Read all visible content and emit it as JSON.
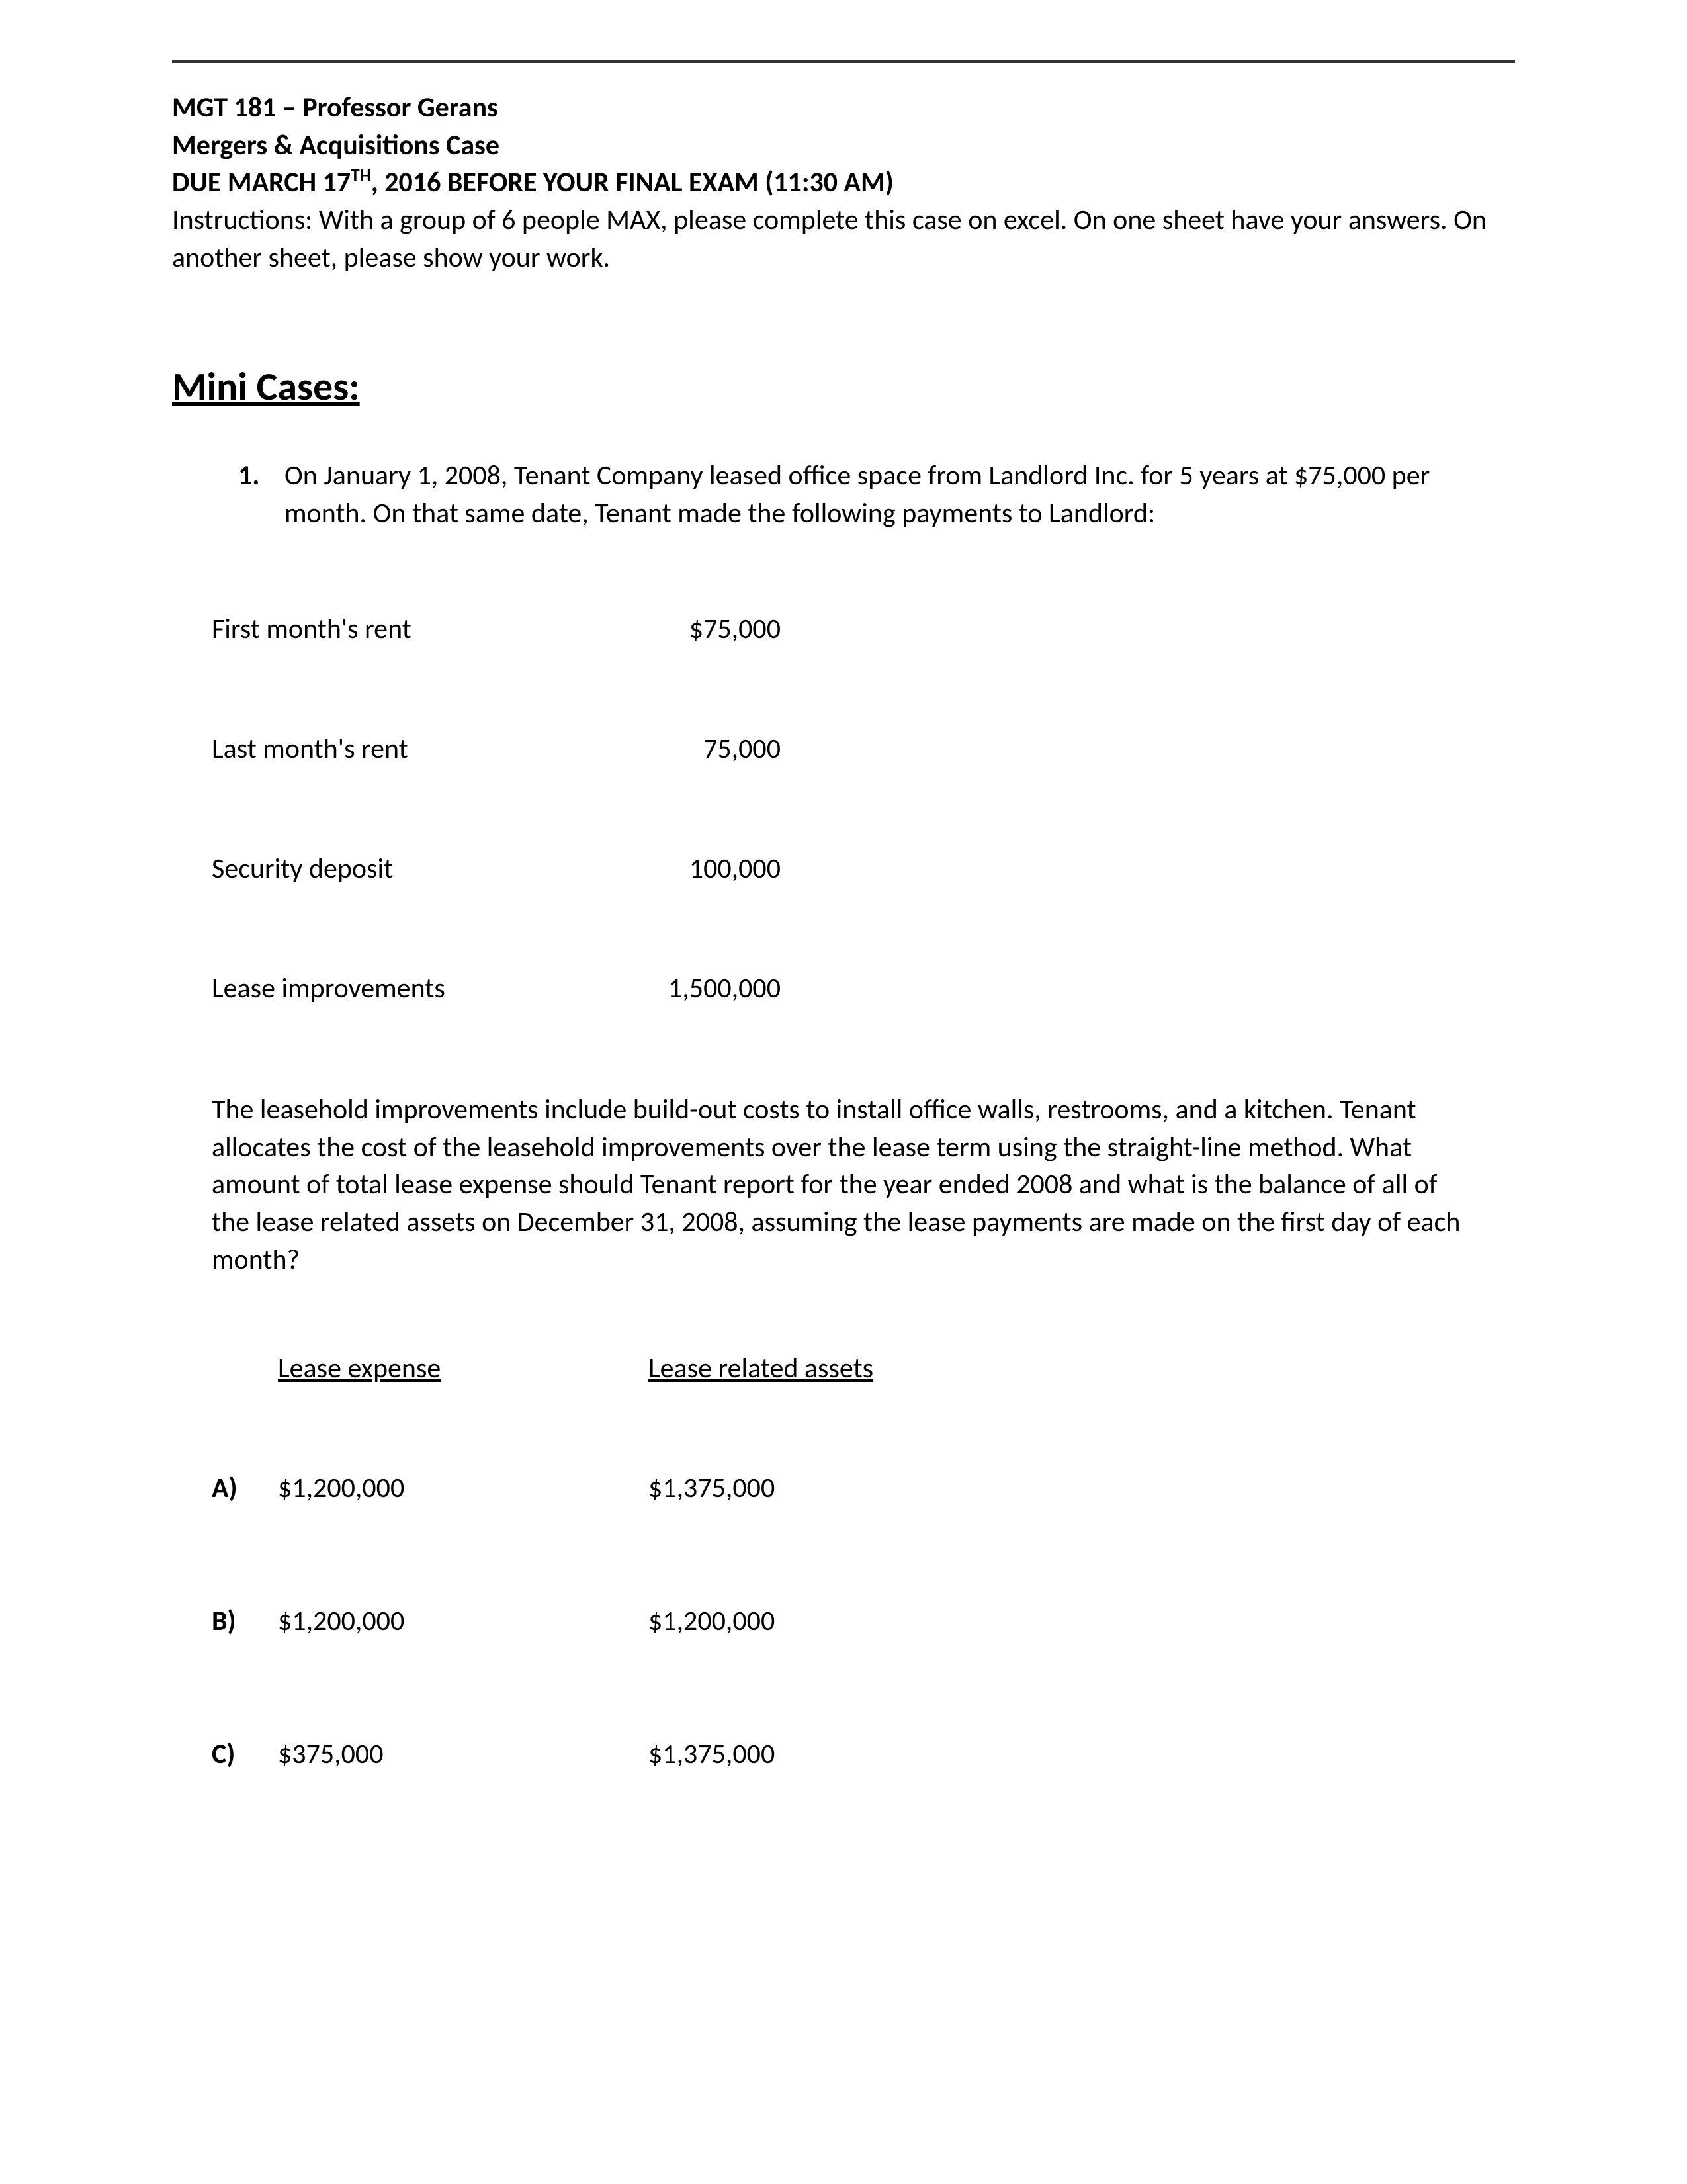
{
  "header": {
    "course_line": "MGT 181 – Professor Gerans",
    "case_line": "Mergers & Acquisitions Case",
    "due_prefix": "DUE MARCH 17",
    "due_sup": "TH",
    "due_suffix": ", 2016 BEFORE YOUR FINAL EXAM (11:30 AM)",
    "instructions": "Instructions: With a group of 6 people MAX, please complete this case on excel. On one sheet have your answers. On another sheet, please show your work."
  },
  "section_title": "Mini Cases: ",
  "question": {
    "number": "1.",
    "text": "On January 1, 2008, Tenant Company leased office space from Landlord Inc. for 5 years at $75,000 per month. On that same date, Tenant made the following payments to Landlord:"
  },
  "payments": [
    {
      "label": "First month's rent",
      "value": "$75,000"
    },
    {
      "label": "Last month's rent",
      "value": "75,000"
    },
    {
      "label": "Security deposit",
      "value": "100,000"
    },
    {
      "label": "Lease improvements",
      "value": "1,500,000"
    }
  ],
  "paragraph": "The leasehold improvements include build-out costs to install office walls, restrooms, and a kitchen. Tenant allocates the cost of the leasehold improvements over the lease term using the straight-line method. What amount of total lease expense should Tenant report for the year ended 2008 and what is the balance of all of the lease related assets on December 31, 2008, assuming the lease payments are made on the first day of each month?",
  "options_header": {
    "col1": "Lease expense",
    "col2": "Lease related assets"
  },
  "options": [
    {
      "letter": "A)",
      "col1": "$1,200,000",
      "col2": "$1,375,000"
    },
    {
      "letter": "B)",
      "col1": "$1,200,000",
      "col2": "$1,200,000"
    },
    {
      "letter": "C)",
      "col1": "$375,000",
      "col2": "$1,375,000"
    }
  ],
  "colors": {
    "rule": "#333333",
    "text": "#000000",
    "background": "#ffffff"
  }
}
